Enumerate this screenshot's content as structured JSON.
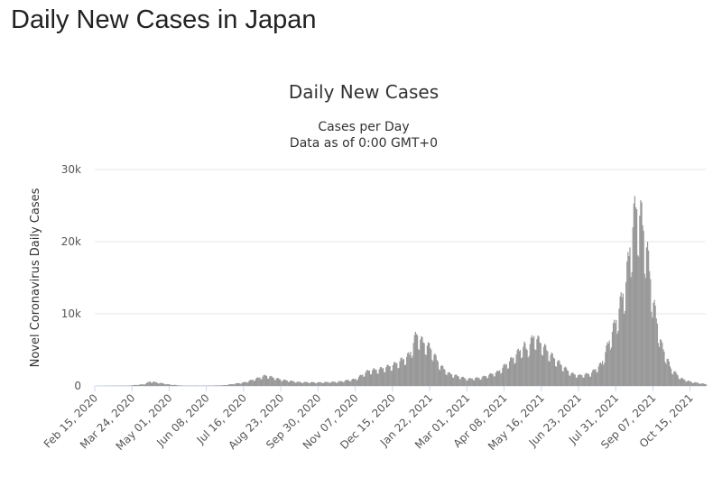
{
  "page": {
    "heading": "Daily New Cases in Japan"
  },
  "chart_data": {
    "type": "bar",
    "title": "Daily New Cases",
    "subtitle": [
      "Cases per Day",
      "Data as of 0:00 GMT+0"
    ],
    "ylabel": "Novel Coronavirus Daily Cases",
    "xlabel": "",
    "ylim": [
      0,
      30000
    ],
    "y_ticks": [
      0,
      10000,
      20000,
      30000
    ],
    "y_tick_labels": [
      "0",
      "10k",
      "20k",
      "30k"
    ],
    "x_tick_labels": [
      "Feb 15, 2020",
      "Mar 24, 2020",
      "May 01, 2020",
      "Jun 08, 2020",
      "Jul 16, 2020",
      "Aug 23, 2020",
      "Sep 30, 2020",
      "Nov 07, 2020",
      "Dec 15, 2020",
      "Jan 22, 2021",
      "Mar 01, 2021",
      "Apr 08, 2021",
      "May 16, 2021",
      "Jun 23, 2021",
      "Jul 31, 2021",
      "Sep 07, 2021",
      "Oct 15, 2021"
    ],
    "x_range": [
      "Feb 15, 2020",
      "Oct 31, 2021"
    ],
    "grid": true,
    "legend": "none",
    "bar_color": "#999999",
    "series": [
      {
        "keypoints": [
          [
            "Feb 15, 2020",
            0
          ],
          [
            "Mar 20, 2020",
            50
          ],
          [
            "Apr 05, 2020",
            250
          ],
          [
            "Apr 11, 2020",
            650
          ],
          [
            "Apr 20, 2020",
            450
          ],
          [
            "May 01, 2020",
            200
          ],
          [
            "May 15, 2020",
            40
          ],
          [
            "Jun 08, 2020",
            40
          ],
          [
            "Jun 25, 2020",
            100
          ],
          [
            "Jul 16, 2020",
            500
          ],
          [
            "Jul 25, 2020",
            900
          ],
          [
            "Aug 07, 2020",
            1500
          ],
          [
            "Aug 23, 2020",
            900
          ],
          [
            "Sep 10, 2020",
            550
          ],
          [
            "Sep 30, 2020",
            500
          ],
          [
            "Oct 20, 2020",
            600
          ],
          [
            "Nov 07, 2020",
            1000
          ],
          [
            "Nov 20, 2020",
            2200
          ],
          [
            "Dec 01, 2020",
            2400
          ],
          [
            "Dec 15, 2020",
            3000
          ],
          [
            "Dec 25, 2020",
            3800
          ],
          [
            "Jan 01, 2021",
            4500
          ],
          [
            "Jan 08, 2021",
            7500
          ],
          [
            "Jan 13, 2021",
            6500
          ],
          [
            "Jan 22, 2021",
            5500
          ],
          [
            "Feb 01, 2021",
            3000
          ],
          [
            "Feb 10, 2021",
            1800
          ],
          [
            "Mar 01, 2021",
            1000
          ],
          [
            "Mar 15, 2021",
            1200
          ],
          [
            "Apr 01, 2021",
            2000
          ],
          [
            "Apr 15, 2021",
            3800
          ],
          [
            "Apr 28, 2021",
            5800
          ],
          [
            "May 01, 2021",
            5200
          ],
          [
            "May 08, 2021",
            7200
          ],
          [
            "May 16, 2021",
            6000
          ],
          [
            "May 25, 2021",
            4500
          ],
          [
            "Jun 05, 2021",
            3000
          ],
          [
            "Jun 15, 2021",
            1800
          ],
          [
            "Jun 23, 2021",
            1500
          ],
          [
            "Jul 05, 2021",
            1800
          ],
          [
            "Jul 16, 2021",
            3200
          ],
          [
            "Jul 31, 2021",
            9500
          ],
          [
            "Aug 10, 2021",
            15000
          ],
          [
            "Aug 14, 2021",
            20000
          ],
          [
            "Aug 20, 2021",
            25800
          ],
          [
            "Aug 26, 2021",
            24000
          ],
          [
            "Aug 31, 2021",
            20000
          ],
          [
            "Sep 07, 2021",
            12000
          ],
          [
            "Sep 15, 2021",
            6000
          ],
          [
            "Sep 25, 2021",
            2500
          ],
          [
            "Oct 05, 2021",
            1100
          ],
          [
            "Oct 15, 2021",
            600
          ],
          [
            "Oct 31, 2021",
            250
          ]
        ]
      }
    ]
  }
}
